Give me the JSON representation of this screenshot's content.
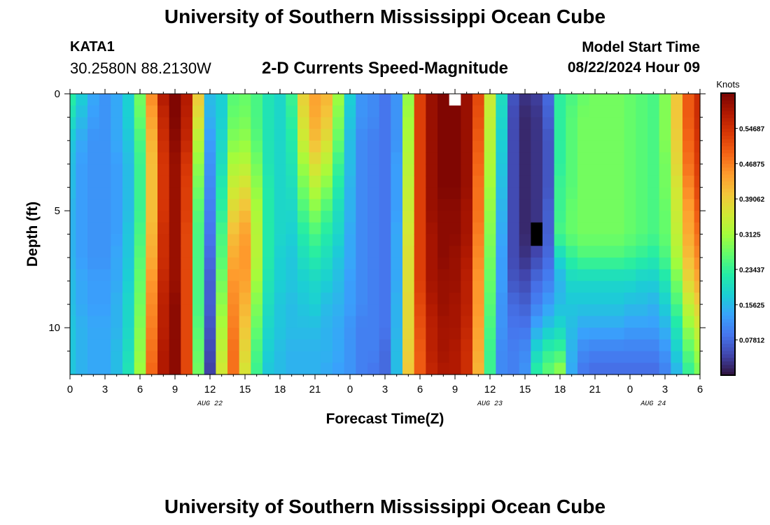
{
  "header": {
    "title": "University of Southern Mississippi Ocean Cube",
    "station_id": "KATA1",
    "station_coords": "30.2580N  88.2130W",
    "subtitle": "2-D Currents Speed-Magnitude",
    "model_label": "Model Start Time",
    "model_time": "08/22/2024 Hour 09"
  },
  "footer": {
    "title": "University of Southern Mississippi Ocean Cube"
  },
  "chart_data": {
    "type": "heatmap",
    "xlabel": "Forecast Time(Z)",
    "ylabel": "Depth (ft)",
    "colorbar_label": "Knots",
    "x_hours_range": [
      0,
      54
    ],
    "y_range": [
      0,
      12
    ],
    "y_ticks": [
      0,
      5,
      10
    ],
    "x_ticks": [
      "0",
      "3",
      "6",
      "9",
      "12",
      "15",
      "18",
      "21",
      "0",
      "3",
      "6",
      "9",
      "12",
      "15",
      "18",
      "21",
      "0",
      "3",
      "6"
    ],
    "date_labels": [
      "AUG 22",
      "AUG 23",
      "AUG 24"
    ],
    "colorbar_ticks": [
      "0.07812",
      "0.15625",
      "0.23437",
      "0.3125",
      "0.39062",
      "0.46875",
      "0.54687"
    ],
    "colorbar_range": [
      0,
      0.625
    ],
    "colormap": [
      "#30123b",
      "#4145ab",
      "#4675ed",
      "#39a2fc",
      "#1bcfd4",
      "#24eca6",
      "#61fc6c",
      "#a4fc3b",
      "#d1e834",
      "#f3c63a",
      "#fe9b2d",
      "#f36315",
      "#d93806",
      "#b11901",
      "#7a0402"
    ],
    "depths_ft": [
      0,
      1,
      2,
      3,
      4,
      5,
      6,
      7,
      8,
      9,
      10,
      11,
      12
    ],
    "time_keypoints_hours": [
      0,
      1,
      2,
      3,
      4,
      5,
      6,
      7,
      8,
      9,
      10,
      11,
      12,
      13,
      14,
      15,
      16,
      17,
      18,
      19,
      20,
      21,
      22,
      23,
      24,
      25,
      26,
      27,
      28,
      29,
      30,
      31,
      32,
      33,
      34,
      35,
      36,
      37,
      38,
      39,
      40,
      41,
      42,
      43,
      44,
      45,
      46,
      47,
      48,
      49,
      50,
      51,
      52,
      53,
      54
    ],
    "speed_profiles_knots": [
      [
        0.23,
        0.2,
        0.17,
        0.16,
        0.16,
        0.15,
        0.15,
        0.15,
        0.16,
        0.16,
        0.17,
        0.17,
        0.17
      ],
      [
        0.18,
        0.16,
        0.14,
        0.13,
        0.13,
        0.13,
        0.13,
        0.13,
        0.14,
        0.14,
        0.15,
        0.15,
        0.15
      ],
      [
        0.14,
        0.13,
        0.12,
        0.12,
        0.12,
        0.12,
        0.12,
        0.12,
        0.13,
        0.13,
        0.14,
        0.14,
        0.14
      ],
      [
        0.12,
        0.12,
        0.12,
        0.12,
        0.12,
        0.12,
        0.12,
        0.12,
        0.13,
        0.13,
        0.14,
        0.14,
        0.14
      ],
      [
        0.14,
        0.14,
        0.14,
        0.13,
        0.13,
        0.13,
        0.13,
        0.14,
        0.14,
        0.15,
        0.15,
        0.16,
        0.16
      ],
      [
        0.18,
        0.18,
        0.17,
        0.16,
        0.16,
        0.16,
        0.17,
        0.17,
        0.18,
        0.19,
        0.19,
        0.2,
        0.21
      ],
      [
        0.28,
        0.27,
        0.25,
        0.24,
        0.24,
        0.24,
        0.25,
        0.26,
        0.27,
        0.28,
        0.29,
        0.3,
        0.31
      ],
      [
        0.46,
        0.44,
        0.42,
        0.41,
        0.41,
        0.41,
        0.42,
        0.43,
        0.45,
        0.46,
        0.47,
        0.48,
        0.49
      ],
      [
        0.58,
        0.56,
        0.55,
        0.54,
        0.54,
        0.54,
        0.55,
        0.55,
        0.56,
        0.57,
        0.57,
        0.58,
        0.58
      ],
      [
        0.62,
        0.62,
        0.61,
        0.6,
        0.6,
        0.6,
        0.6,
        0.6,
        0.6,
        0.61,
        0.61,
        0.61,
        0.61
      ],
      [
        0.58,
        0.57,
        0.56,
        0.54,
        0.53,
        0.53,
        0.52,
        0.52,
        0.52,
        0.52,
        0.52,
        0.52,
        0.52
      ],
      [
        0.4,
        0.37,
        0.33,
        0.3,
        0.28,
        0.26,
        0.25,
        0.25,
        0.25,
        0.25,
        0.26,
        0.27,
        0.28
      ],
      [
        0.16,
        0.15,
        0.13,
        0.12,
        0.11,
        0.1,
        0.09,
        0.08,
        0.07,
        0.07,
        0.06,
        0.05,
        0.04
      ],
      [
        0.18,
        0.18,
        0.19,
        0.2,
        0.22,
        0.23,
        0.25,
        0.26,
        0.28,
        0.3,
        0.32,
        0.34,
        0.36
      ],
      [
        0.26,
        0.27,
        0.29,
        0.32,
        0.35,
        0.38,
        0.41,
        0.43,
        0.45,
        0.46,
        0.47,
        0.48,
        0.48
      ],
      [
        0.27,
        0.28,
        0.3,
        0.33,
        0.37,
        0.41,
        0.44,
        0.45,
        0.44,
        0.42,
        0.4,
        0.38,
        0.36
      ],
      [
        0.25,
        0.25,
        0.26,
        0.28,
        0.3,
        0.32,
        0.33,
        0.33,
        0.31,
        0.29,
        0.27,
        0.25,
        0.24
      ],
      [
        0.21,
        0.21,
        0.21,
        0.21,
        0.22,
        0.22,
        0.22,
        0.22,
        0.21,
        0.2,
        0.19,
        0.18,
        0.17
      ],
      [
        0.19,
        0.19,
        0.19,
        0.19,
        0.19,
        0.19,
        0.19,
        0.18,
        0.18,
        0.17,
        0.17,
        0.16,
        0.16
      ],
      [
        0.24,
        0.23,
        0.22,
        0.21,
        0.2,
        0.19,
        0.18,
        0.17,
        0.17,
        0.16,
        0.16,
        0.15,
        0.15
      ],
      [
        0.39,
        0.37,
        0.35,
        0.31,
        0.28,
        0.25,
        0.22,
        0.2,
        0.18,
        0.17,
        0.16,
        0.15,
        0.15
      ],
      [
        0.44,
        0.43,
        0.41,
        0.37,
        0.33,
        0.29,
        0.25,
        0.22,
        0.19,
        0.18,
        0.16,
        0.15,
        0.15
      ],
      [
        0.42,
        0.4,
        0.37,
        0.33,
        0.29,
        0.25,
        0.22,
        0.2,
        0.18,
        0.16,
        0.15,
        0.15,
        0.14
      ],
      [
        0.31,
        0.29,
        0.27,
        0.24,
        0.22,
        0.2,
        0.19,
        0.17,
        0.16,
        0.15,
        0.14,
        0.14,
        0.13
      ],
      [
        0.18,
        0.17,
        0.16,
        0.16,
        0.15,
        0.15,
        0.14,
        0.14,
        0.13,
        0.13,
        0.12,
        0.12,
        0.12
      ],
      [
        0.12,
        0.12,
        0.11,
        0.11,
        0.11,
        0.11,
        0.11,
        0.11,
        0.11,
        0.11,
        0.1,
        0.1,
        0.1
      ],
      [
        0.11,
        0.11,
        0.1,
        0.1,
        0.1,
        0.1,
        0.1,
        0.1,
        0.1,
        0.1,
        0.1,
        0.1,
        0.09
      ],
      [
        0.09,
        0.09,
        0.09,
        0.09,
        0.09,
        0.09,
        0.09,
        0.09,
        0.09,
        0.09,
        0.09,
        0.08,
        0.08
      ],
      [
        0.12,
        0.12,
        0.12,
        0.13,
        0.13,
        0.13,
        0.14,
        0.14,
        0.14,
        0.15,
        0.15,
        0.16,
        0.16
      ],
      [
        0.3,
        0.31,
        0.32,
        0.33,
        0.34,
        0.35,
        0.36,
        0.37,
        0.37,
        0.38,
        0.38,
        0.39,
        0.4
      ],
      [
        0.53,
        0.53,
        0.53,
        0.53,
        0.53,
        0.53,
        0.53,
        0.53,
        0.53,
        0.52,
        0.51,
        0.5,
        0.5
      ],
      [
        0.6,
        0.6,
        0.6,
        0.6,
        0.6,
        0.6,
        0.59,
        0.59,
        0.59,
        0.58,
        0.57,
        0.57,
        0.56
      ],
      [
        0.62,
        0.62,
        0.62,
        0.62,
        0.62,
        0.61,
        0.61,
        0.61,
        0.6,
        0.6,
        0.59,
        0.59,
        0.58
      ],
      [
        0.62,
        0.62,
        0.62,
        0.62,
        0.62,
        0.61,
        0.61,
        0.6,
        0.6,
        0.59,
        0.59,
        0.58,
        0.58
      ],
      [
        0.6,
        0.6,
        0.6,
        0.6,
        0.6,
        0.59,
        0.59,
        0.58,
        0.57,
        0.57,
        0.56,
        0.55,
        0.55
      ],
      [
        0.52,
        0.51,
        0.5,
        0.49,
        0.48,
        0.48,
        0.47,
        0.46,
        0.45,
        0.45,
        0.44,
        0.43,
        0.42
      ],
      [
        0.35,
        0.34,
        0.33,
        0.32,
        0.31,
        0.3,
        0.29,
        0.28,
        0.27,
        0.26,
        0.25,
        0.24,
        0.24
      ],
      [
        0.2,
        0.19,
        0.18,
        0.17,
        0.16,
        0.15,
        0.14,
        0.13,
        0.13,
        0.12,
        0.12,
        0.11,
        0.11
      ],
      [
        0.06,
        0.05,
        0.05,
        0.05,
        0.05,
        0.05,
        0.05,
        0.05,
        0.06,
        0.08,
        0.09,
        0.1,
        0.1
      ],
      [
        0.03,
        0.02,
        0.02,
        0.02,
        0.02,
        0.02,
        0.02,
        0.03,
        0.05,
        0.07,
        0.09,
        0.11,
        0.12
      ],
      [
        0.04,
        0.03,
        0.03,
        0.03,
        0.03,
        0.03,
        0.03,
        0.05,
        0.08,
        0.1,
        0.14,
        0.19,
        0.23
      ],
      [
        0.08,
        0.07,
        0.06,
        0.06,
        0.06,
        0.07,
        0.07,
        0.08,
        0.1,
        0.13,
        0.17,
        0.23,
        0.27
      ],
      [
        0.23,
        0.23,
        0.23,
        0.23,
        0.24,
        0.24,
        0.25,
        0.19,
        0.15,
        0.16,
        0.19,
        0.24,
        0.31
      ],
      [
        0.25,
        0.26,
        0.26,
        0.26,
        0.26,
        0.27,
        0.27,
        0.23,
        0.19,
        0.17,
        0.16,
        0.15,
        0.14
      ],
      [
        0.27,
        0.28,
        0.28,
        0.28,
        0.28,
        0.28,
        0.28,
        0.25,
        0.19,
        0.17,
        0.14,
        0.11,
        0.09
      ],
      [
        0.28,
        0.28,
        0.28,
        0.28,
        0.28,
        0.28,
        0.28,
        0.25,
        0.19,
        0.17,
        0.14,
        0.1,
        0.08
      ],
      [
        0.28,
        0.28,
        0.28,
        0.28,
        0.28,
        0.28,
        0.28,
        0.25,
        0.19,
        0.17,
        0.14,
        0.1,
        0.08
      ],
      [
        0.28,
        0.28,
        0.28,
        0.28,
        0.28,
        0.28,
        0.28,
        0.25,
        0.19,
        0.17,
        0.14,
        0.1,
        0.08
      ],
      [
        0.27,
        0.27,
        0.27,
        0.27,
        0.27,
        0.27,
        0.27,
        0.24,
        0.19,
        0.16,
        0.13,
        0.1,
        0.08
      ],
      [
        0.26,
        0.26,
        0.26,
        0.26,
        0.26,
        0.26,
        0.26,
        0.23,
        0.18,
        0.16,
        0.13,
        0.1,
        0.08
      ],
      [
        0.25,
        0.25,
        0.25,
        0.25,
        0.25,
        0.25,
        0.25,
        0.22,
        0.18,
        0.15,
        0.13,
        0.1,
        0.08
      ],
      [
        0.29,
        0.29,
        0.29,
        0.28,
        0.28,
        0.27,
        0.27,
        0.25,
        0.21,
        0.18,
        0.15,
        0.12,
        0.1
      ],
      [
        0.4,
        0.4,
        0.39,
        0.38,
        0.36,
        0.35,
        0.34,
        0.32,
        0.28,
        0.25,
        0.21,
        0.18,
        0.15
      ],
      [
        0.5,
        0.5,
        0.49,
        0.48,
        0.46,
        0.44,
        0.43,
        0.41,
        0.38,
        0.34,
        0.3,
        0.26,
        0.23
      ],
      [
        0.55,
        0.55,
        0.54,
        0.53,
        0.52,
        0.5,
        0.48,
        0.46,
        0.43,
        0.39,
        0.35,
        0.31,
        0.28
      ]
    ],
    "no_data_cells": [
      {
        "hour": 33,
        "depth_ft_range": [
          0.0,
          0.5
        ],
        "color": "#ffffff"
      },
      {
        "hour": 40,
        "depth_ft_range": [
          5.5,
          6.5
        ],
        "color": "#000000"
      }
    ]
  }
}
